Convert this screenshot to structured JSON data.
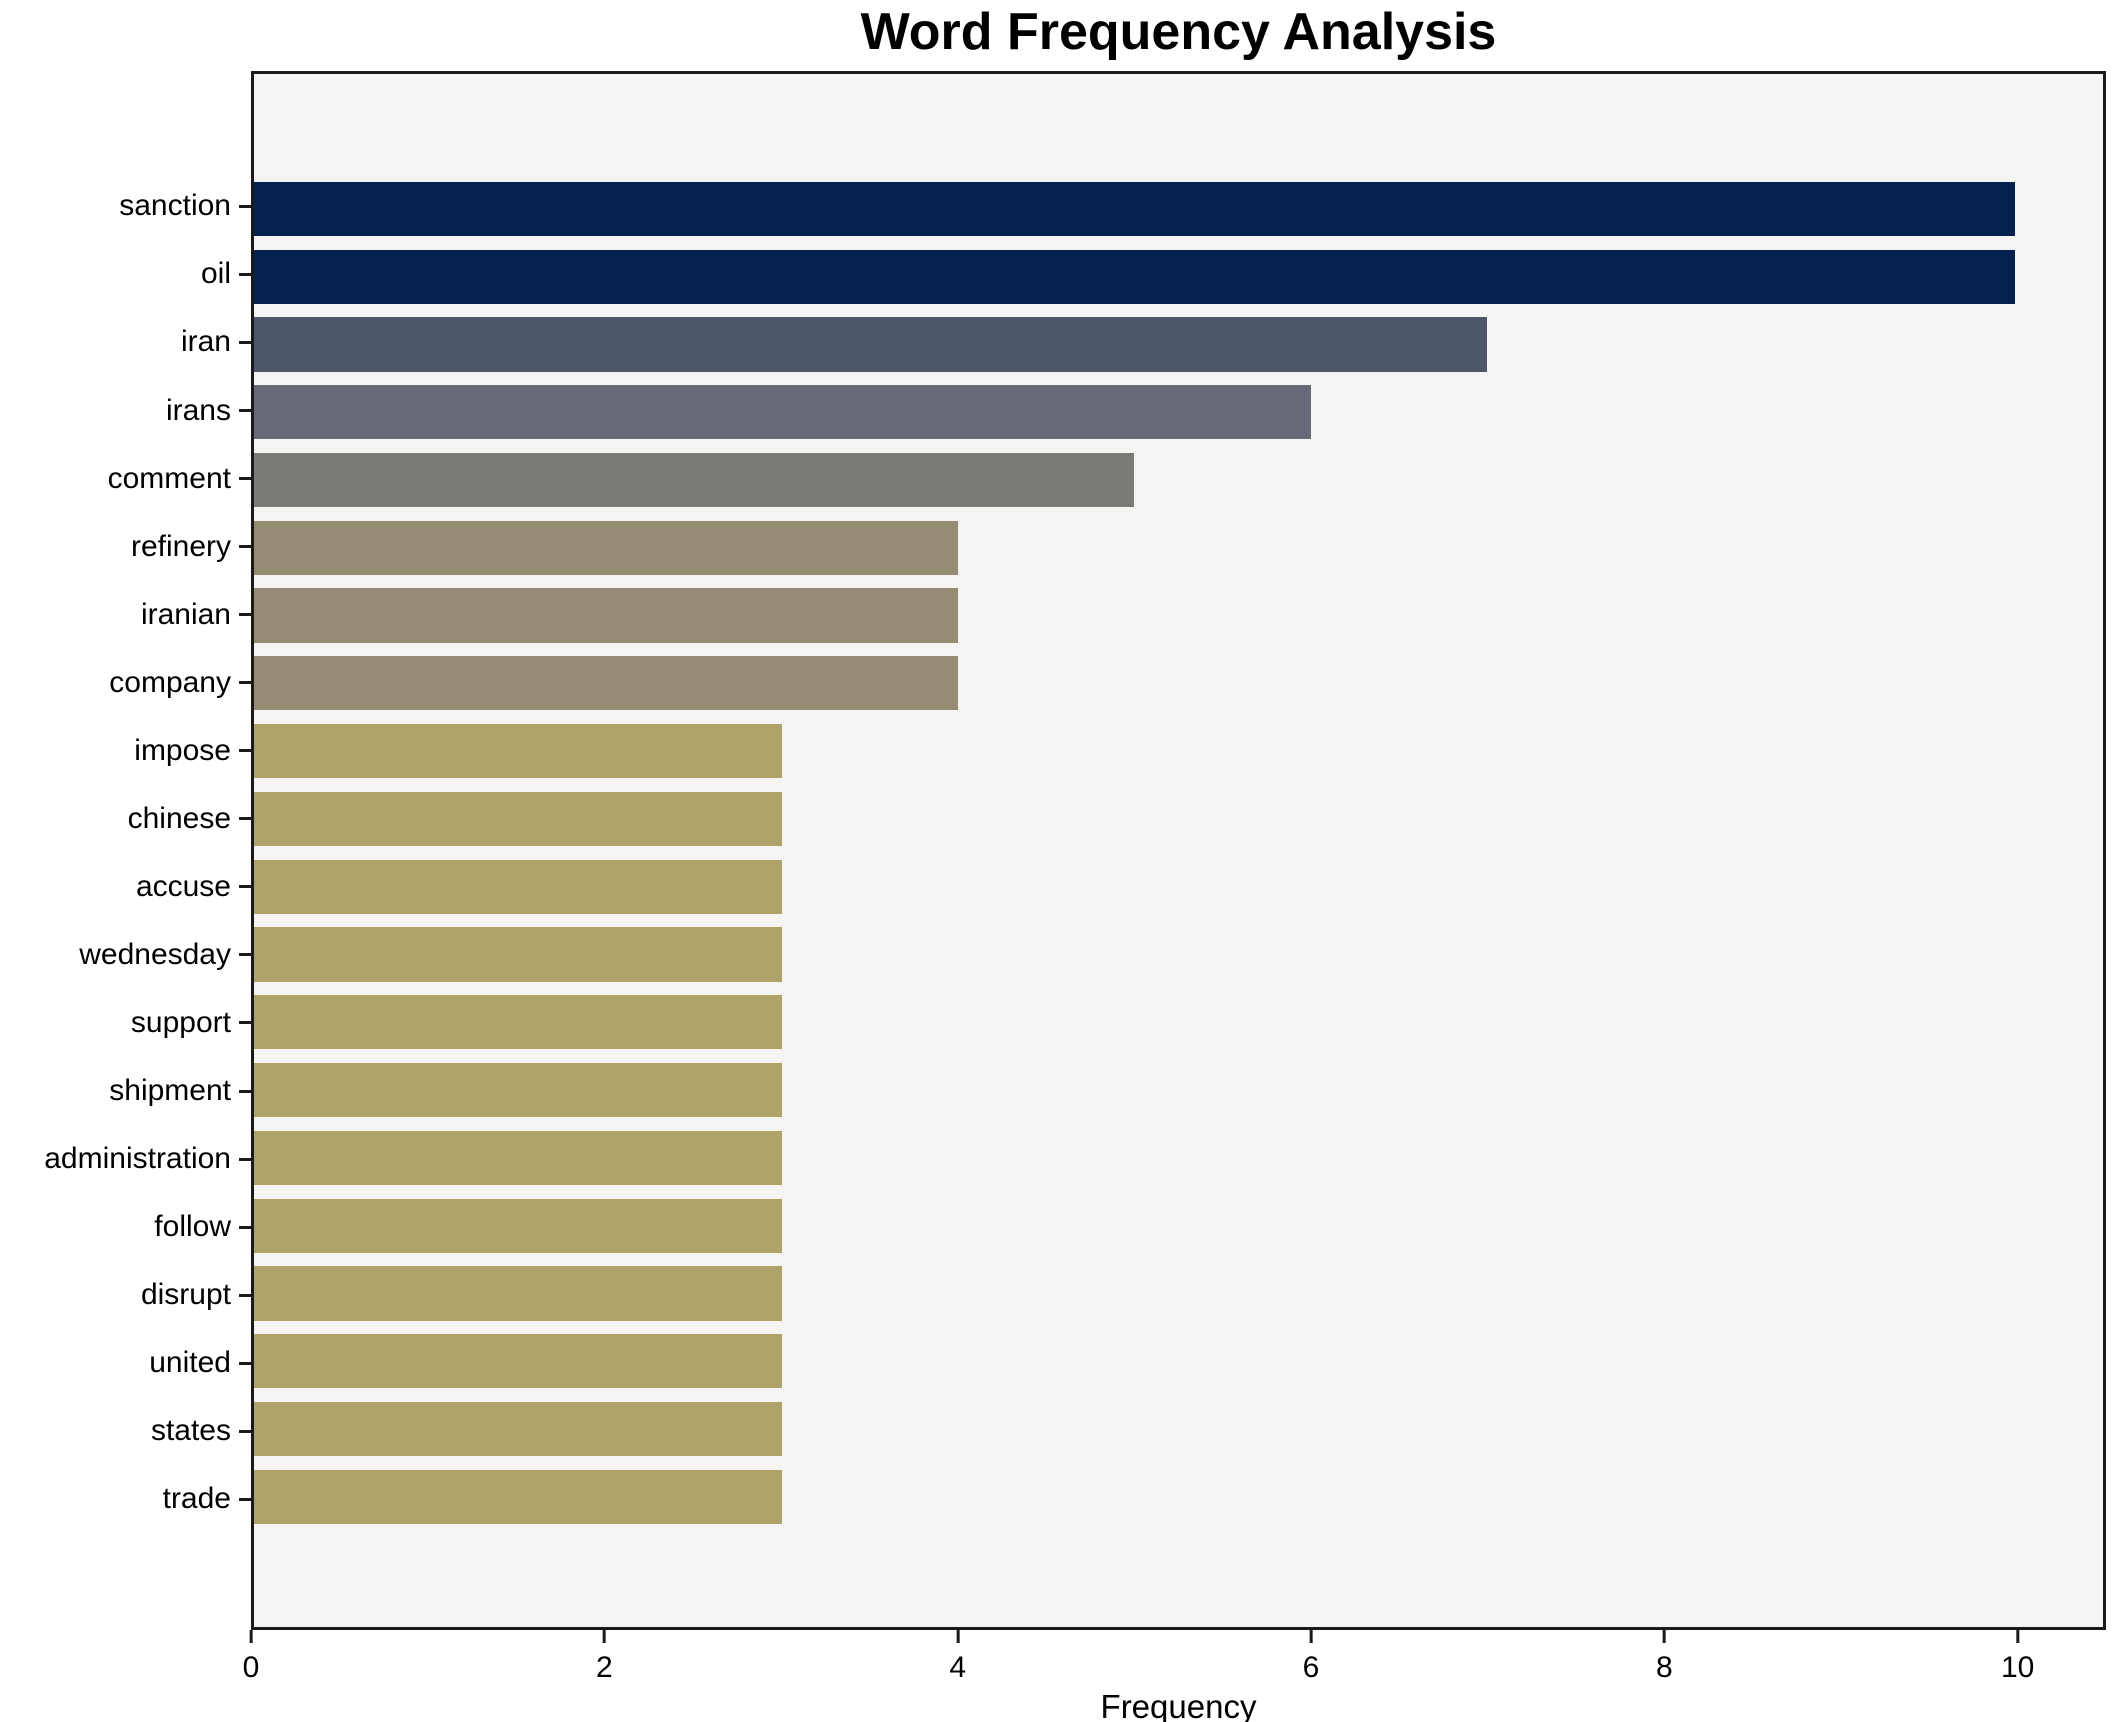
{
  "chart_data": {
    "type": "bar",
    "orientation": "horizontal",
    "title": "Word Frequency Analysis",
    "xlabel": "Frequency",
    "ylabel": "",
    "categories": [
      "sanction",
      "oil",
      "iran",
      "irans",
      "comment",
      "refinery",
      "iranian",
      "company",
      "impose",
      "chinese",
      "accuse",
      "wednesday",
      "support",
      "shipment",
      "administration",
      "follow",
      "disrupt",
      "united",
      "states",
      "trade"
    ],
    "values": [
      10,
      10,
      7,
      6,
      5,
      4,
      4,
      4,
      3,
      3,
      3,
      3,
      3,
      3,
      3,
      3,
      3,
      3,
      3,
      3
    ],
    "bar_colors": [
      "#03224e",
      "#03224e",
      "#4d566b",
      "#666a76",
      "#7b7a77",
      "#948d73",
      "#948d73",
      "#948d73",
      "#aea269",
      "#aea269",
      "#aea269",
      "#aea269",
      "#aea269",
      "#aea269",
      "#aea269",
      "#aea269",
      "#aea269",
      "#aea269",
      "#aea269",
      "#aea269"
    ],
    "xlim": [
      0,
      10.5
    ],
    "xticks": [
      0,
      2,
      4,
      6,
      8,
      10
    ],
    "grid": "off",
    "legend": "none",
    "plot_background": "#f5f4f2",
    "figure_background": "#ffffff",
    "spine_color": "#1a1a1a"
  }
}
